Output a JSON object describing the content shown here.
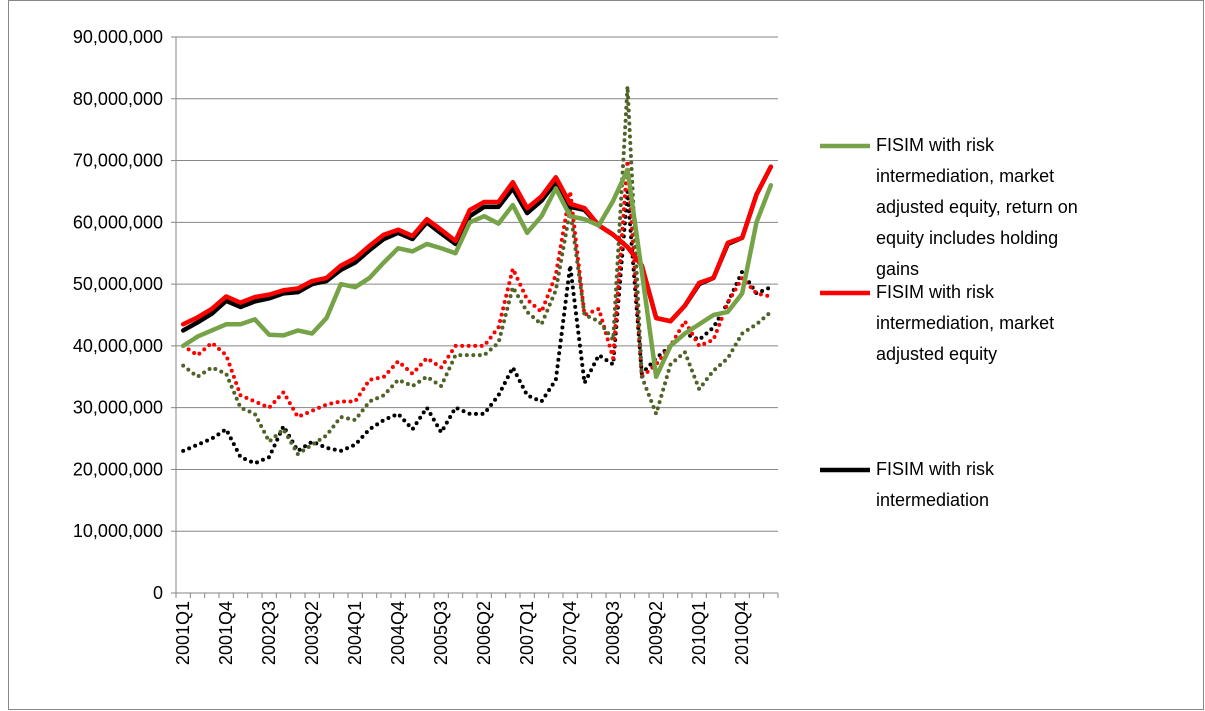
{
  "chart_data": {
    "type": "line",
    "categories": [
      "2001Q1",
      null,
      null,
      "2001Q4",
      null,
      null,
      "2002Q3",
      null,
      null,
      "2003Q2",
      null,
      null,
      "2004Q1",
      null,
      null,
      "2004Q4",
      null,
      null,
      "2005Q3",
      null,
      null,
      "2006Q2",
      null,
      null,
      "2007Q1",
      null,
      null,
      "2007Q4",
      null,
      null,
      "2008Q3",
      null,
      null,
      "2009Q2",
      null,
      null,
      "2010Q1",
      null,
      null,
      "2010Q4",
      null,
      null
    ],
    "ylim": [
      0,
      90000000
    ],
    "yticks": [
      0,
      {
        "value": 10000000,
        "label": "10,000,000"
      },
      {
        "value": 20000000,
        "label": "20,000,000"
      },
      {
        "value": 30000000,
        "label": "30,000,000"
      },
      {
        "value": 40000000,
        "label": "40,000,000"
      },
      {
        "value": 50000000,
        "label": "50,000,000"
      },
      {
        "value": 60000000,
        "label": "60,000,000"
      },
      {
        "value": 70000000,
        "label": "70,000,000"
      },
      {
        "value": 80000000,
        "label": "80,000,000"
      },
      {
        "value": 90000000,
        "label": "90,000,000"
      }
    ],
    "grid": true,
    "legend": "right",
    "series": [
      {
        "name": "FISIM with risk intermediation, market adjusted equity, return on equity includes holding gains",
        "color": "#77a348",
        "style": "solid",
        "values": [
          40000000,
          41500000,
          42500000,
          43500000,
          43500000,
          44300000,
          41800000,
          41700000,
          42500000,
          42000000,
          44500000,
          50000000,
          49500000,
          51000000,
          53500000,
          55800000,
          55300000,
          56500000,
          55800000,
          55000000,
          60000000,
          61000000,
          59800000,
          62800000,
          58300000,
          61000000,
          65500000,
          61000000,
          60500000,
          59500000,
          63500000,
          68500000,
          52000000,
          35000000,
          40000000,
          42000000,
          43500000,
          45000000,
          45500000,
          48500000,
          60000000,
          66000000
        ]
      },
      {
        "name": "FISIM with risk intermediation, market adjusted equity",
        "color": "#ff0000",
        "style": "solid",
        "values": [
          43500000,
          44600000,
          46000000,
          48000000,
          47000000,
          47900000,
          48300000,
          49000000,
          49300000,
          50500000,
          51000000,
          53000000,
          54200000,
          56200000,
          58000000,
          58800000,
          57800000,
          60500000,
          58800000,
          57000000,
          62000000,
          63300000,
          63300000,
          66500000,
          62300000,
          64200000,
          67300000,
          63000000,
          62300000,
          59500000,
          58000000,
          56000000,
          53000000,
          44500000,
          44000000,
          46500000,
          50200000,
          51000000,
          56700000,
          57500000,
          64500000,
          69000000
        ]
      },
      {
        "name": "FISIM with risk intermediation",
        "color": "#000000",
        "style": "solid",
        "values": [
          42500000,
          43800000,
          45200000,
          47300000,
          46300000,
          47200000,
          47700000,
          48500000,
          48700000,
          50000000,
          50500000,
          52300000,
          53500000,
          55500000,
          57300000,
          58300000,
          57300000,
          60000000,
          58200000,
          56500000,
          61000000,
          62500000,
          62500000,
          65500000,
          61500000,
          63500000,
          66500000,
          62500000,
          62000000,
          59500000,
          58000000,
          56000000,
          53000000,
          44500000,
          44000000,
          46500000,
          50000000,
          51000000,
          56500000,
          57500000,
          64500000,
          69000000
        ]
      },
      {
        "color": "#4f6228",
        "style": "dotted",
        "values": [
          36800000,
          35000000,
          36500000,
          35500000,
          30000000,
          29000000,
          24500000,
          26500000,
          22500000,
          24000000,
          25500000,
          28500000,
          28000000,
          31000000,
          32000000,
          34500000,
          33500000,
          35000000,
          33500000,
          38500000,
          38500000,
          38500000,
          40500000,
          49500000,
          45500000,
          43500000,
          49000000,
          62000000,
          45000000,
          44000000,
          41000000,
          82000000,
          35000000,
          29000000,
          37000000,
          39000000,
          33000000,
          36000000,
          38000000,
          42000000,
          43500000,
          45500000
        ]
      },
      {
        "color": "#ff0000",
        "style": "dotted",
        "values": [
          40000000,
          38500000,
          40500000,
          38500000,
          32000000,
          31000000,
          30000000,
          32500000,
          28500000,
          29500000,
          30500000,
          31000000,
          31000000,
          34500000,
          35000000,
          37500000,
          35500000,
          38000000,
          36500000,
          40000000,
          40000000,
          40000000,
          43000000,
          52500000,
          47500000,
          45500000,
          51500000,
          65000000,
          45000000,
          46000000,
          38000000,
          70000000,
          35000000,
          37000000,
          40000000,
          44000000,
          40000000,
          41000000,
          47000000,
          51000000,
          48500000,
          48000000
        ]
      },
      {
        "color": "#000000",
        "style": "dotted",
        "values": [
          23000000,
          24000000,
          25000000,
          26500000,
          22000000,
          21000000,
          22000000,
          27000000,
          23000000,
          24500000,
          23500000,
          23000000,
          24000000,
          26500000,
          28000000,
          29000000,
          26500000,
          30000000,
          26000000,
          30000000,
          29000000,
          29000000,
          32000000,
          36500000,
          32000000,
          31000000,
          34500000,
          53000000,
          34000000,
          38500000,
          37000000,
          65000000,
          35500000,
          38000000,
          40000000,
          42000000,
          41000000,
          43000000,
          47000000,
          52000000,
          48500000,
          49500000
        ]
      }
    ]
  }
}
